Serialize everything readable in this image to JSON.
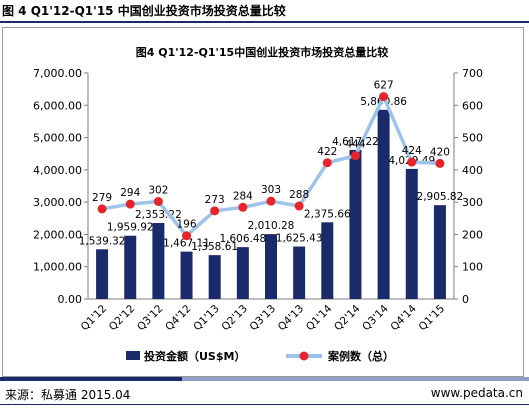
{
  "figure_caption": "图 4 Q1'12-Q1'15 中国创业投资市场投资总量比较",
  "source": "来源：私募通  2015.04",
  "website": "www.pedata.cn",
  "colors": {
    "bar": "#1b2a6b",
    "line": "#9dc3ea",
    "marker": "#e8232a"
  },
  "chart_data": {
    "type": "bar",
    "title": "图4 Q1'12-Q1'15中国创业投资市场投资总量比较",
    "categories": [
      "Q1'12",
      "Q2'12",
      "Q3'12",
      "Q4'12",
      "Q1'13",
      "Q2'13",
      "Q3'13",
      "Q4'13",
      "Q1'14",
      "Q2'14",
      "Q3'14",
      "Q4'14",
      "Q1'15"
    ],
    "bar_labels": [
      "1,539.32",
      "1,959.92",
      "2,353.22",
      "1,467.11",
      "1,358.61",
      "1,606.48",
      "2,010.28",
      "1,625.43",
      "2,375.66",
      "4,617.22",
      "5,860.86",
      "4,029.49",
      "2,905.82"
    ],
    "series": [
      {
        "name": "投资金额（US$M）",
        "type": "bar",
        "axis": "left",
        "values": [
          1539.32,
          1959.92,
          2353.22,
          1467.11,
          1358.61,
          1606.48,
          2010.28,
          1625.43,
          2375.66,
          4617.22,
          5860.86,
          4029.49,
          2905.82
        ]
      },
      {
        "name": "案例数（总）",
        "type": "line",
        "axis": "right",
        "values": [
          279,
          294,
          302,
          196,
          273,
          284,
          303,
          288,
          422,
          444,
          627,
          424,
          420
        ]
      }
    ],
    "y_left": {
      "min": 0,
      "max": 7000,
      "step": 1000,
      "ticks": [
        "0.00",
        "1,000.00",
        "2,000.00",
        "3,000.00",
        "4,000.00",
        "5,000.00",
        "6,000.00",
        "7,000.00"
      ]
    },
    "y_right": {
      "min": 0,
      "max": 700,
      "step": 100,
      "ticks": [
        "0",
        "100",
        "200",
        "300",
        "400",
        "500",
        "600",
        "700"
      ]
    },
    "grid": false,
    "legend_position": "bottom"
  }
}
